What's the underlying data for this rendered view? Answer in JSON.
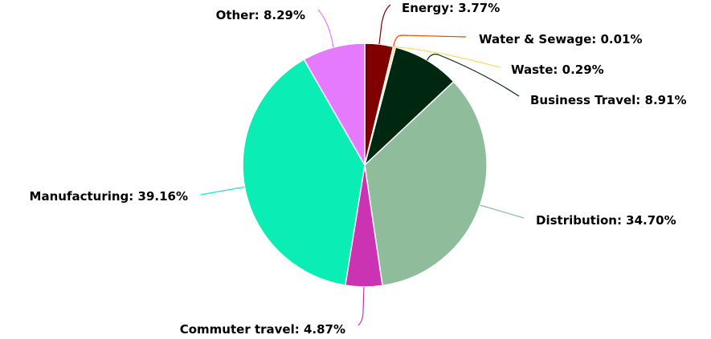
{
  "chart_data": {
    "type": "pie",
    "title": "",
    "slices": [
      {
        "label": "Energy",
        "value": 3.77,
        "color": "#800000",
        "display": "Energy: 3.77%"
      },
      {
        "label": "Water & Sewage",
        "value": 0.01,
        "color": "#ff4500",
        "display": "Water & Sewage: 0.01%"
      },
      {
        "label": "Waste",
        "value": 0.29,
        "color": "#ffd966",
        "display": "Waste: 0.29%"
      },
      {
        "label": "Business Travel",
        "value": 8.91,
        "color": "#002810",
        "display": "Business Travel: 8.91%"
      },
      {
        "label": "Distribution",
        "value": 34.7,
        "color": "#8fbc9a",
        "display": "Distribution: 34.70%"
      },
      {
        "label": "Commuter travel",
        "value": 4.87,
        "color": "#cc33b3",
        "display": "Commuter travel: 4.87%"
      },
      {
        "label": "Manufacturing",
        "value": 39.16,
        "color": "#0aedb5",
        "display": "Manufacturing: 39.16%"
      },
      {
        "label": "Other",
        "value": 8.29,
        "color": "#e57aff",
        "display": "Other: 8.29%"
      }
    ],
    "start_angle": "top",
    "direction": "clockwise",
    "legend": "none"
  }
}
